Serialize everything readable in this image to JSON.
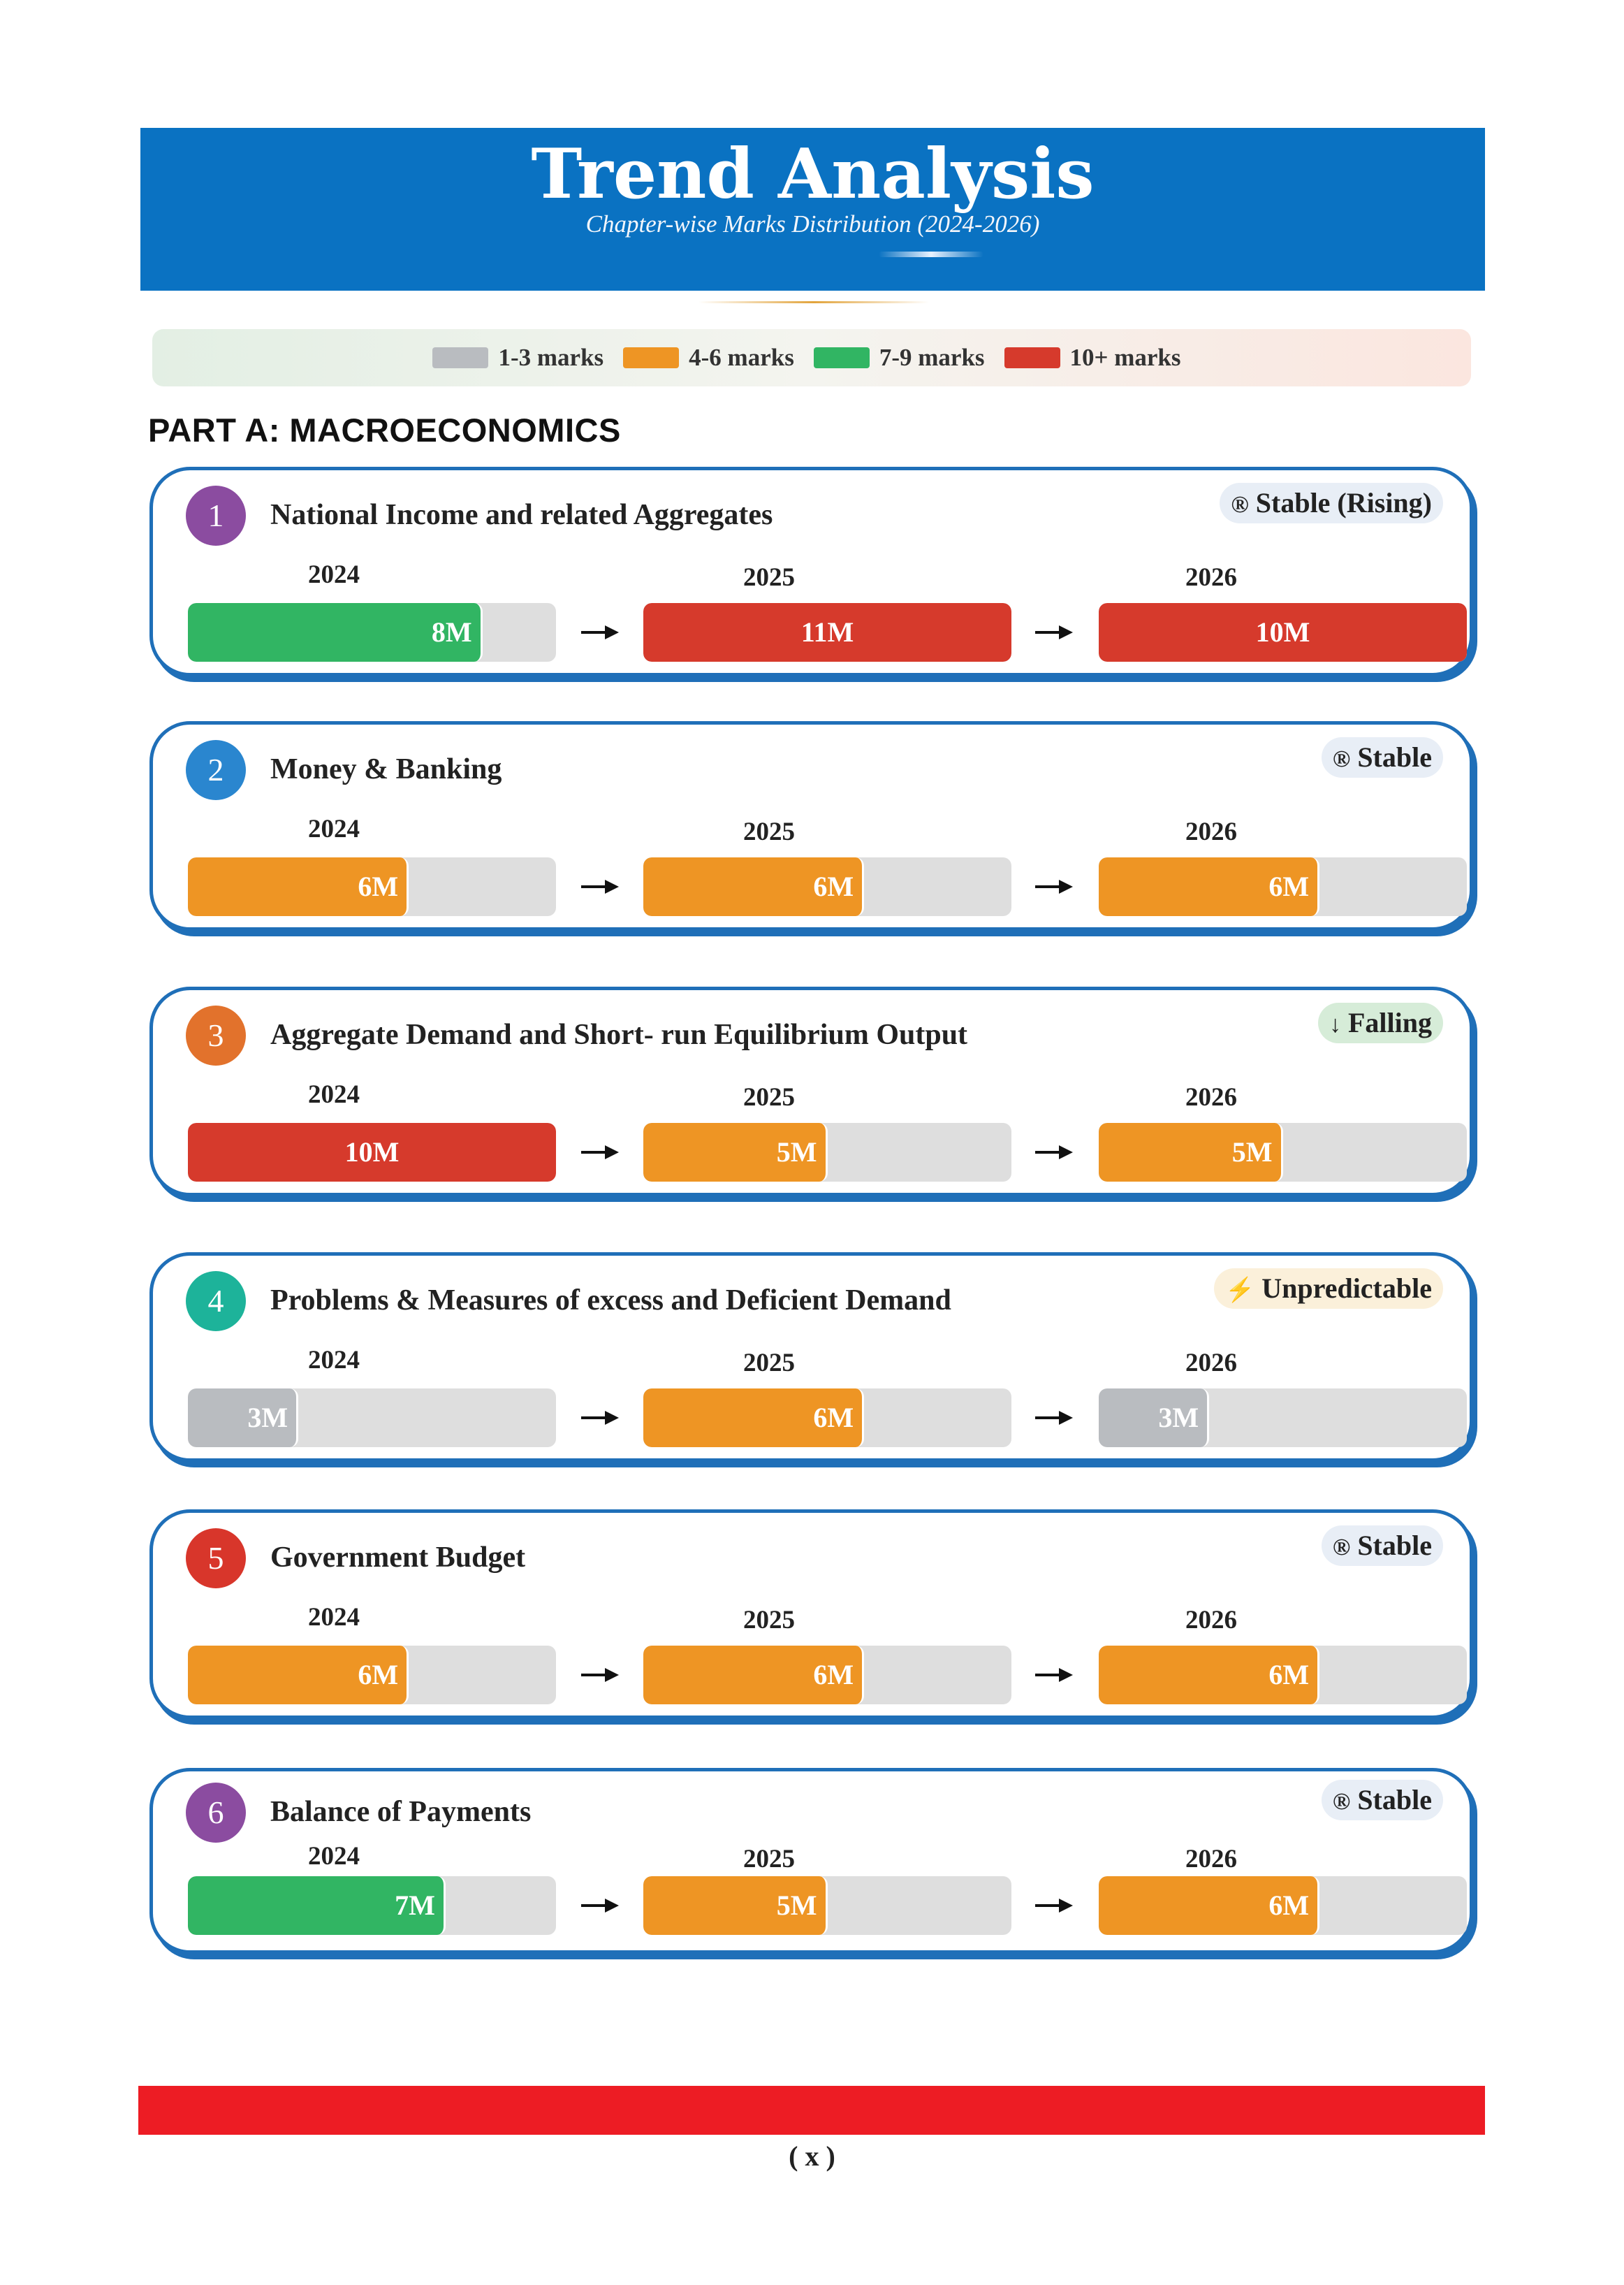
{
  "header": {
    "title": "Trend Analysis",
    "subtitle": "Chapter-wise Marks Distribution (2024-2026)"
  },
  "legend": [
    {
      "label": "1-3 marks",
      "color": "#b9bcc0"
    },
    {
      "label": "4-6 marks",
      "color": "#ee9524"
    },
    {
      "label": "7-9 marks",
      "color": "#31b563"
    },
    {
      "label": "10+ marks",
      "color": "#d63a2c"
    }
  ],
  "part_title": "PART A: MACROECONOMICS",
  "colors": {
    "low": "#b9bcc0",
    "mid": "#ee9524",
    "high": "#31b563",
    "top": "#d63a2c",
    "track": "#dedede",
    "border": "#1f6fb8"
  },
  "chart_data": {
    "type": "bar",
    "years": [
      "2024",
      "2025",
      "2026"
    ],
    "max_marks": 10,
    "chapters": [
      {
        "number": "1",
        "title": "National Income and related Aggregates",
        "trend_icon": "registered-icon",
        "trend_symbol": "®",
        "trend": "Stable (Rising)",
        "badge_color": "#e8eef6",
        "circle_color": "#8b4ca0",
        "values": [
          8,
          11,
          10
        ],
        "labels": [
          "8M",
          "11M",
          "10M"
        ]
      },
      {
        "number": "2",
        "title": "Money & Banking",
        "trend_icon": "registered-icon",
        "trend_symbol": "®",
        "trend": "Stable",
        "badge_color": "#e8eef6",
        "circle_color": "#2a86cf",
        "values": [
          6,
          6,
          6
        ],
        "labels": [
          "6M",
          "6M",
          "6M"
        ]
      },
      {
        "number": "3",
        "title": "Aggregate Demand and Short- run Equilibrium Output",
        "trend_icon": "down-arrow-icon",
        "trend_symbol": "↓",
        "trend": "Falling",
        "badge_color": "#d6ecd8",
        "circle_color": "#e2722c",
        "values": [
          10,
          5,
          5
        ],
        "labels": [
          "10M",
          "5M",
          "5M"
        ]
      },
      {
        "number": "4",
        "title": "Problems & Measures of excess and Deficient Demand",
        "trend_icon": "lightning-icon",
        "trend_symbol": "⚡",
        "trend": "Unpredictable",
        "badge_color": "#fbf0da",
        "circle_color": "#1db39a",
        "values": [
          3,
          6,
          3
        ],
        "labels": [
          "3M",
          "6M",
          "3M"
        ]
      },
      {
        "number": "5",
        "title": "Government Budget",
        "trend_icon": "registered-icon",
        "trend_symbol": "®",
        "trend": "Stable",
        "badge_color": "#e8eef6",
        "circle_color": "#d8362b",
        "values": [
          6,
          6,
          6
        ],
        "labels": [
          "6M",
          "6M",
          "6M"
        ]
      },
      {
        "number": "6",
        "title": "Balance of Payments",
        "trend_icon": "registered-icon",
        "trend_symbol": "®",
        "trend": "Stable",
        "badge_color": "#e8eef6",
        "circle_color": "#8b4ca0",
        "values": [
          7,
          5,
          6
        ],
        "labels": [
          "7M",
          "5M",
          "6M"
        ]
      }
    ]
  },
  "footer": {
    "page": "( x )"
  }
}
